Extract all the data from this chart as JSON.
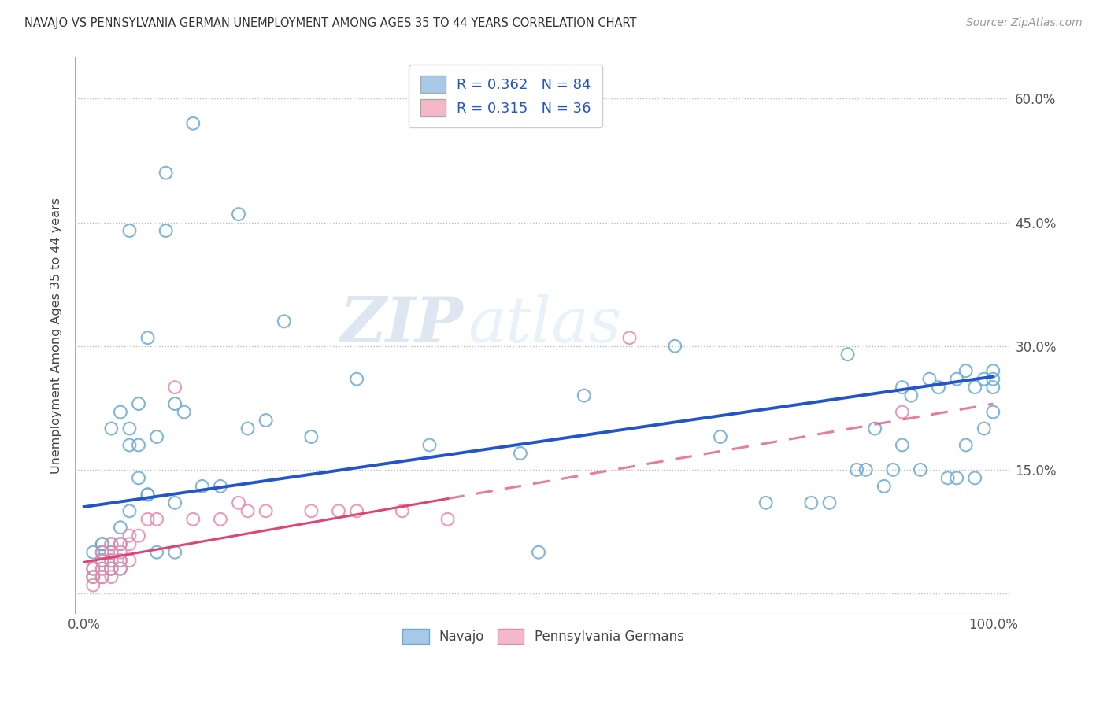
{
  "title": "NAVAJO VS PENNSYLVANIA GERMAN UNEMPLOYMENT AMONG AGES 35 TO 44 YEARS CORRELATION CHART",
  "source": "Source: ZipAtlas.com",
  "ylabel": "Unemployment Among Ages 35 to 44 years",
  "navajo_R": "0.362",
  "navajo_N": "84",
  "pg_R": "0.315",
  "pg_N": "36",
  "navajo_color": "#a8c8e8",
  "navajo_edge": "#6aaad4",
  "pg_color": "#f5b8c8",
  "pg_edge": "#e88aaa",
  "navajo_line_color": "#2255cc",
  "pg_line_color": "#dd4477",
  "bg_color": "#ffffff",
  "grid_color": "#bbbbbb",
  "xlim": [
    -0.01,
    1.02
  ],
  "ylim": [
    -0.025,
    0.65
  ],
  "xticks": [
    0.0,
    0.25,
    0.5,
    0.75,
    1.0
  ],
  "xtick_labels": [
    "0.0%",
    "",
    "",
    "",
    "100.0%"
  ],
  "yticks": [
    0.0,
    0.15,
    0.3,
    0.45,
    0.6
  ],
  "ytick_labels": [
    "",
    "15.0%",
    "30.0%",
    "45.0%",
    "60.0%"
  ],
  "navajo_line_x0": 0.0,
  "navajo_line_y0": 0.105,
  "navajo_line_x1": 1.0,
  "navajo_line_y1": 0.263,
  "pg_line_solid_x0": 0.0,
  "pg_line_solid_y0": 0.038,
  "pg_line_solid_x1": 0.4,
  "pg_line_solid_y1": 0.115,
  "pg_line_dash_x0": 0.4,
  "pg_line_dash_y0": 0.115,
  "pg_line_dash_x1": 1.0,
  "pg_line_dash_y1": 0.23,
  "navajo_x": [
    0.01,
    0.01,
    0.01,
    0.02,
    0.02,
    0.02,
    0.02,
    0.02,
    0.02,
    0.02,
    0.02,
    0.03,
    0.03,
    0.03,
    0.03,
    0.03,
    0.03,
    0.03,
    0.04,
    0.04,
    0.04,
    0.04,
    0.04,
    0.05,
    0.05,
    0.05,
    0.05,
    0.06,
    0.06,
    0.06,
    0.07,
    0.07,
    0.07,
    0.08,
    0.08,
    0.09,
    0.09,
    0.1,
    0.1,
    0.1,
    0.11,
    0.12,
    0.13,
    0.15,
    0.17,
    0.18,
    0.2,
    0.22,
    0.25,
    0.3,
    0.38,
    0.48,
    0.5,
    0.55,
    0.65,
    0.7,
    0.75,
    0.8,
    0.82,
    0.84,
    0.85,
    0.86,
    0.87,
    0.88,
    0.89,
    0.9,
    0.9,
    0.91,
    0.92,
    0.93,
    0.94,
    0.95,
    0.96,
    0.96,
    0.97,
    0.97,
    0.98,
    0.98,
    0.99,
    0.99,
    1.0,
    1.0,
    1.0,
    1.0
  ],
  "navajo_y": [
    0.02,
    0.03,
    0.05,
    0.02,
    0.03,
    0.04,
    0.04,
    0.05,
    0.05,
    0.06,
    0.06,
    0.03,
    0.03,
    0.04,
    0.05,
    0.05,
    0.06,
    0.2,
    0.03,
    0.04,
    0.06,
    0.08,
    0.22,
    0.1,
    0.18,
    0.2,
    0.44,
    0.14,
    0.18,
    0.23,
    0.12,
    0.12,
    0.31,
    0.05,
    0.19,
    0.44,
    0.51,
    0.05,
    0.11,
    0.23,
    0.22,
    0.57,
    0.13,
    0.13,
    0.46,
    0.2,
    0.21,
    0.33,
    0.19,
    0.26,
    0.18,
    0.17,
    0.05,
    0.24,
    0.3,
    0.19,
    0.11,
    0.11,
    0.11,
    0.29,
    0.15,
    0.15,
    0.2,
    0.13,
    0.15,
    0.18,
    0.25,
    0.24,
    0.15,
    0.26,
    0.25,
    0.14,
    0.14,
    0.26,
    0.18,
    0.27,
    0.14,
    0.25,
    0.2,
    0.26,
    0.22,
    0.25,
    0.26,
    0.27
  ],
  "pg_x": [
    0.01,
    0.01,
    0.01,
    0.02,
    0.02,
    0.02,
    0.02,
    0.02,
    0.03,
    0.03,
    0.03,
    0.03,
    0.03,
    0.04,
    0.04,
    0.04,
    0.04,
    0.05,
    0.05,
    0.05,
    0.06,
    0.07,
    0.08,
    0.1,
    0.12,
    0.15,
    0.17,
    0.18,
    0.2,
    0.25,
    0.28,
    0.3,
    0.35,
    0.4,
    0.6,
    0.9
  ],
  "pg_y": [
    0.01,
    0.02,
    0.03,
    0.02,
    0.02,
    0.03,
    0.04,
    0.05,
    0.02,
    0.03,
    0.04,
    0.05,
    0.06,
    0.03,
    0.04,
    0.05,
    0.06,
    0.04,
    0.06,
    0.07,
    0.07,
    0.09,
    0.09,
    0.25,
    0.09,
    0.09,
    0.11,
    0.1,
    0.1,
    0.1,
    0.1,
    0.1,
    0.1,
    0.09,
    0.31,
    0.22
  ]
}
